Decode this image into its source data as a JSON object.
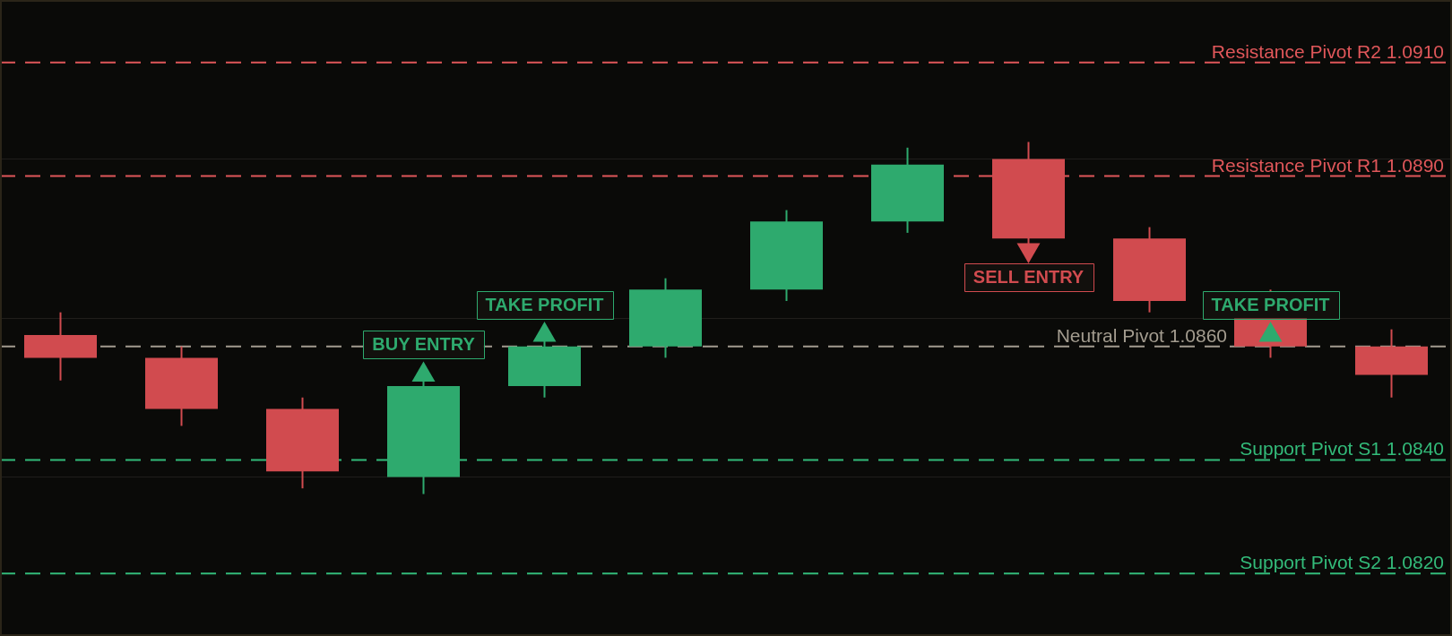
{
  "chart_data": {
    "type": "candlestick",
    "categories": [
      null,
      null,
      null,
      null,
      null,
      null,
      null,
      null,
      null,
      null,
      null,
      null
    ],
    "ohlc": [
      [
        1.0862,
        1.0866,
        1.0854,
        1.0858
      ],
      [
        1.0858,
        1.086,
        1.0846,
        1.0849
      ],
      [
        1.0849,
        1.0851,
        1.0835,
        1.0838
      ],
      [
        1.0837,
        1.0854,
        1.0834,
        1.0853
      ],
      [
        1.0853,
        1.0861,
        1.0851,
        1.086
      ],
      [
        1.086,
        1.0872,
        1.0858,
        1.087
      ],
      [
        1.087,
        1.0884,
        1.0868,
        1.0882
      ],
      [
        1.0882,
        1.0895,
        1.088,
        1.0892
      ],
      [
        1.0893,
        1.0896,
        1.0878,
        1.0879
      ],
      [
        1.0879,
        1.0881,
        1.0866,
        1.0868
      ],
      [
        1.0865,
        1.087,
        1.0858,
        1.086
      ],
      [
        1.086,
        1.0863,
        1.0851,
        1.0855
      ]
    ],
    "colors": [
      "#d14b4f",
      "#d14b4f",
      "#d14b4f",
      "#2eaa6e",
      "#2eaa6e",
      "#2eaa6e",
      "#2eaa6e",
      "#2eaa6e",
      "#d14b4f",
      "#d14b4f",
      "#d14b4f",
      "#d14b4f"
    ],
    "series": [
      {
        "type": "scatter",
        "name": "BUY ENTRY",
        "color": "#2eaa6e",
        "marker": "triangle",
        "values": [
          null,
          null,
          null,
          1.0855,
          null,
          null,
          null,
          null,
          null,
          null,
          null,
          null
        ]
      },
      {
        "type": "scatter",
        "name": "TAKE PROFIT",
        "color": "#2eaa6e",
        "marker": "triangle",
        "values": [
          null,
          null,
          null,
          null,
          1.0862,
          null,
          null,
          null,
          null,
          null,
          1.0862,
          null
        ]
      },
      {
        "type": "scatter",
        "name": "SELL ENTRY",
        "color": "#d14b4f",
        "marker": "triangle",
        "values": [
          null,
          null,
          null,
          null,
          null,
          null,
          null,
          null,
          1.0877,
          null,
          null,
          null
        ]
      }
    ],
    "ylim": [
      1.0809,
      1.0921
    ],
    "yticks": [
      {
        "value": 1.0837,
        "label": null
      },
      {
        "value": 1.0865,
        "label": null
      },
      {
        "value": 1.0893,
        "label": null
      }
    ],
    "grid": "y",
    "tick_labels": false,
    "legend": false,
    "ref_lines": [
      {
        "axis": "y",
        "value": 1.091,
        "label": "Resistance Pivot R2 1.0910",
        "color": "#e0575a",
        "line_style": "dashed"
      },
      {
        "axis": "y",
        "value": 1.089,
        "label": "Resistance Pivot R1 1.0890",
        "color": "#e0575a",
        "line_style": "dashed"
      },
      {
        "axis": "y",
        "value": 1.086,
        "label": "Neutral Pivot 1.0860",
        "color": "#a39c8f",
        "line_style": "dashed"
      },
      {
        "axis": "y",
        "value": 1.084,
        "label": "Support Pivot S1 1.0840",
        "color": "#33bb7a",
        "line_style": "dashed"
      },
      {
        "axis": "y",
        "value": 1.082,
        "label": "Support Pivot S2 1.0820",
        "color": "#33bb7a",
        "line_style": "dashed"
      }
    ]
  }
}
